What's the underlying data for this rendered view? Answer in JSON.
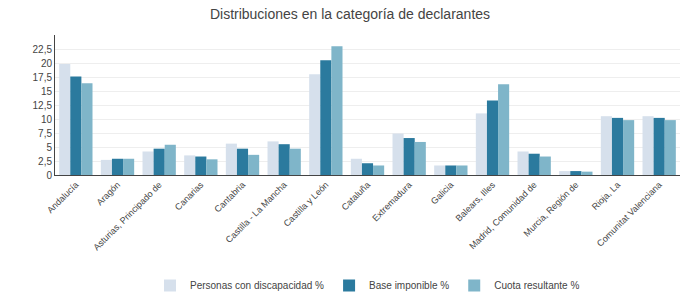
{
  "chart_data": {
    "type": "bar",
    "title": "Distribuciones en la categoría de declarantes",
    "categories": [
      "Andalucía",
      "Aragón",
      "Asturias, Principado de",
      "Canarias",
      "Cantabria",
      "Castilla - La Mancha",
      "Castilla y León",
      "Cataluña",
      "Extremadura",
      "Galicia",
      "Balears, Illes",
      "Madrid, Comunidad de",
      "Murcia, Región de",
      "Rioja, La",
      "Comunitat Valenciana"
    ],
    "series": [
      {
        "name": "Personas con discapacidad %",
        "color": "#d6e0ec",
        "values": [
          19.8,
          2.7,
          4.2,
          3.5,
          5.6,
          6.0,
          18.0,
          2.9,
          7.4,
          1.7,
          11.0,
          4.2,
          0.7,
          10.5,
          10.5
        ]
      },
      {
        "name": "Base imponible %",
        "color": "#2b7a9e",
        "values": [
          17.6,
          2.9,
          4.7,
          3.3,
          4.7,
          5.5,
          20.5,
          2.1,
          6.6,
          1.7,
          13.3,
          3.8,
          0.7,
          10.2,
          10.2
        ]
      },
      {
        "name": "Cuota resultante %",
        "color": "#7fb5c9",
        "values": [
          16.4,
          2.9,
          5.4,
          2.8,
          3.6,
          4.7,
          23.0,
          1.7,
          5.9,
          1.7,
          16.2,
          3.3,
          0.6,
          9.8,
          9.8
        ]
      }
    ],
    "ylim": [
      0,
      25
    ],
    "yticks": [
      0,
      {
        "value": 2.5,
        "label": "2,5"
      },
      5,
      {
        "value": 7.5,
        "label": "7,5"
      },
      10,
      {
        "value": 12.5,
        "label": "12,5"
      },
      15,
      {
        "value": 17.5,
        "label": "17,5"
      },
      20,
      {
        "value": 22.5,
        "label": "22,5"
      }
    ],
    "grid": true,
    "legend": "bottom"
  }
}
